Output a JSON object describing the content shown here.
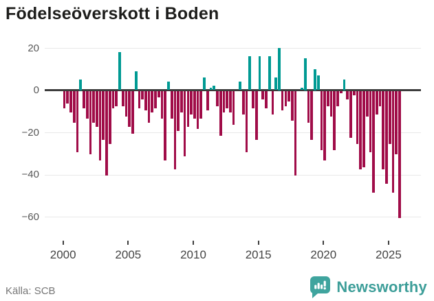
{
  "header": {
    "title": "Födelseöverskott i Boden"
  },
  "footer": {
    "source": "Källa: SCB",
    "brand": "Newsworthy"
  },
  "colors": {
    "positive_bar": "#009a93",
    "negative_bar": "#a00c48",
    "zero_line": "#3c3c3c",
    "gridline": "#e8e8e8",
    "brand_teal": "#3fa49e"
  },
  "chart_data": {
    "type": "bar",
    "title": "Födelseöverskott i Boden",
    "period": "quarterly",
    "start_year": 2000,
    "x_ticks": [
      2000,
      2005,
      2010,
      2015,
      2020,
      2025
    ],
    "y_ticks": [
      20,
      0,
      -20,
      -40,
      -60
    ],
    "ylim": [
      -65,
      22
    ],
    "grid": true,
    "legend": "none",
    "values": [
      -8,
      -6,
      -10,
      -15,
      -29,
      5,
      -8,
      -13,
      -30,
      -15,
      -17,
      -33,
      -23,
      -40,
      -25,
      -8,
      -7,
      18,
      -7,
      -12,
      -17,
      -20,
      9,
      -8,
      -4,
      -9,
      -15,
      -10,
      -8,
      -3,
      -13,
      -33,
      4,
      -13,
      -37,
      -19,
      -10,
      -31,
      -17,
      -11,
      -13,
      -18,
      -13,
      6,
      -9,
      1,
      2,
      -7,
      -21,
      -10,
      -8,
      -10,
      -16,
      0,
      4,
      -11,
      -29,
      16,
      -8,
      -23,
      16,
      -4,
      -8,
      16,
      -11,
      6,
      20,
      -9,
      -7,
      -5,
      -14,
      -40,
      0,
      1,
      15,
      -15,
      -23,
      10,
      7,
      -28,
      -33,
      -7,
      -12,
      -28,
      -7,
      -1,
      5,
      -4,
      -22,
      -2,
      -25,
      -37,
      -36,
      -12,
      -29,
      -48,
      -11,
      -7,
      -37,
      -44,
      -25,
      -48,
      -30,
      -60
    ]
  }
}
